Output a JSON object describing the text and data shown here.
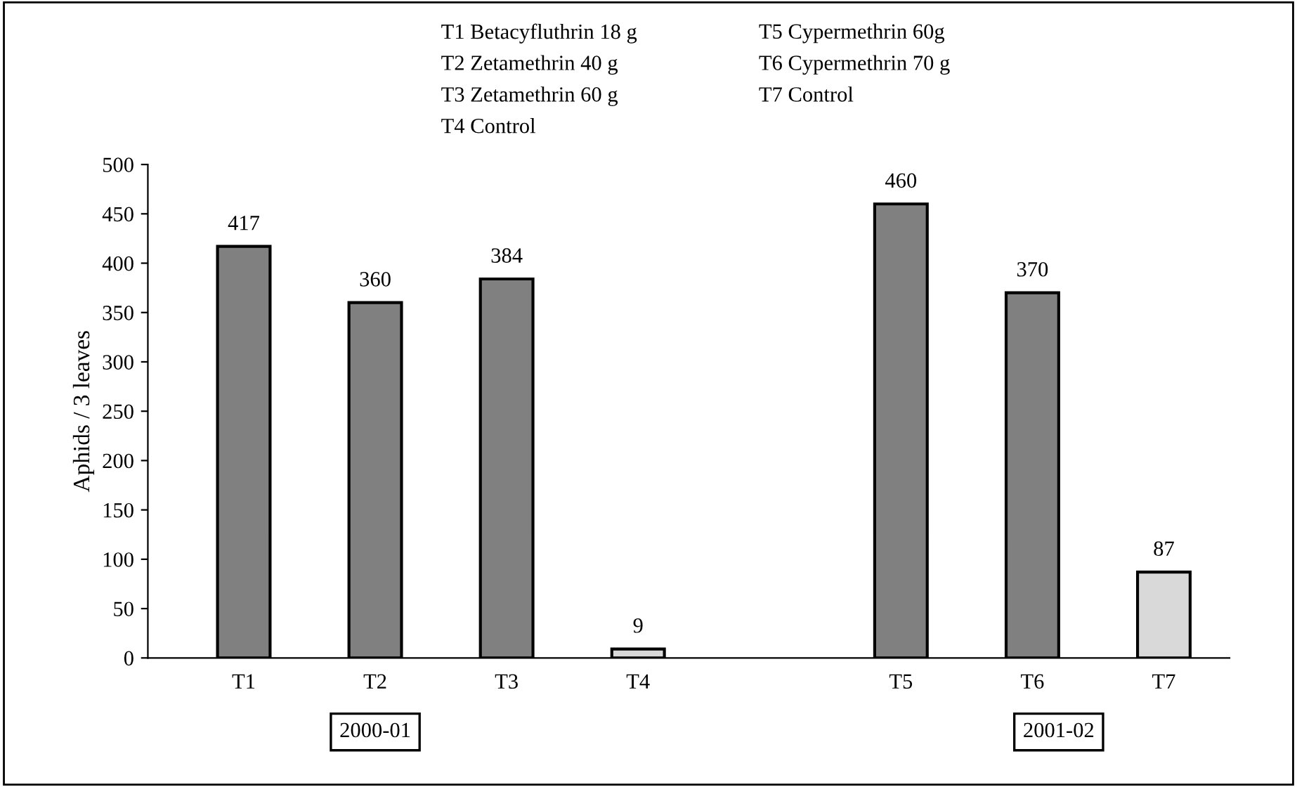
{
  "chart_data": {
    "type": "bar",
    "ylabel": "Aphids / 3 leaves",
    "categories": [
      "T1",
      "T2",
      "T3",
      "T4",
      null,
      "T5",
      "T6",
      "T7"
    ],
    "values": [
      417,
      360,
      384,
      9,
      null,
      460,
      370,
      87
    ],
    "colors": [
      "#808080",
      "#808080",
      "#808080",
      "#d9d9d9",
      null,
      "#808080",
      "#808080",
      "#d9d9d9"
    ],
    "ylim": [
      0,
      500
    ],
    "yticks": [
      0,
      50,
      100,
      150,
      200,
      250,
      300,
      350,
      400,
      450,
      500
    ],
    "data_labels": true,
    "grid": false,
    "annotations": [
      "T1 Betacyfluthrin 18 g",
      "T2 Zetamethrin 40 g",
      "T3 Zetamethrin 60 g",
      "T4 Control",
      "T5 Cypermethrin 60g",
      "T6 Cypermethrin 70 g",
      "T7 Control",
      "2000-01",
      "2001-02"
    ]
  }
}
